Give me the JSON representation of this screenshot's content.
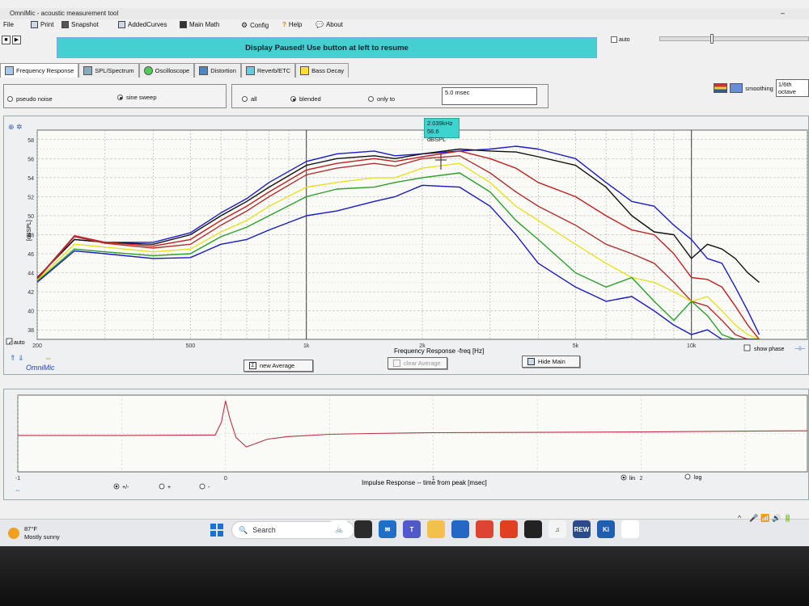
{
  "window": {
    "title": "OmniMic - acoustic measurement tool",
    "minimize": "–"
  },
  "menu": [
    {
      "label": "File",
      "icon": "none"
    },
    {
      "label": "Print",
      "icon": "printer-icon"
    },
    {
      "label": "Snapshot",
      "icon": "camera-icon"
    },
    {
      "label": "AddedCurves",
      "icon": "curves-icon"
    },
    {
      "label": "Main Math",
      "icon": "calculator-icon"
    },
    {
      "label": "Config",
      "icon": "gear-icon"
    },
    {
      "label": "Help",
      "icon": "question-icon"
    },
    {
      "label": "About",
      "icon": "bubble-icon"
    }
  ],
  "banner": {
    "text": "Display Paused! Use button at left to resume",
    "color": "#45cfd0"
  },
  "top_auto": {
    "label": "auto"
  },
  "tabs": [
    {
      "label": "Frequency Response",
      "icon": "freq-response-icon"
    },
    {
      "label": "SPL/Spectrum",
      "icon": "spectrum-icon"
    },
    {
      "label": "Oscilloscope",
      "icon": "oscilloscope-icon"
    },
    {
      "label": "Distortion",
      "icon": "distortion-icon"
    },
    {
      "label": "Reverb/ETC",
      "icon": "reverb-icon"
    },
    {
      "label": "Bass Decay",
      "icon": "bass-decay-icon"
    }
  ],
  "signal_options": {
    "pseudo_noise": "pseudo noise",
    "sine_sweep": "sine sweep",
    "selected": "sine sweep"
  },
  "gate_options": {
    "all": "all",
    "blended": "blended",
    "only_to": "only to",
    "selected": "blended",
    "gate_time": "5.0 msec"
  },
  "smoothing": {
    "label": "smoothing",
    "value": "1/6th octave"
  },
  "cursor_readout": {
    "freq": "2.039kHz",
    "level": "56.6 dBSPL"
  },
  "freq_graph": {
    "y_axis_label": "[dBSPL]",
    "y_ticks": [
      "58",
      "56",
      "54",
      "52",
      "50",
      "48",
      "46",
      "44",
      "42",
      "40",
      "38"
    ],
    "x_ticks": [
      "200",
      "500",
      "1k",
      "2k",
      "5k",
      "10k"
    ],
    "x_label": "Frequency Response -freq [Hz]",
    "auto_label": "auto",
    "brand": "OmniMic",
    "show_phase": "show phase"
  },
  "buttons": {
    "new_average": "new Average",
    "clear_average": "clear Average",
    "hide_main": "Hide Main"
  },
  "chart_data": [
    {
      "type": "line",
      "title": "",
      "xlabel": "Frequency Response -freq [Hz]",
      "ylabel": "[dBSPL]",
      "x_scale": "log",
      "xlim": [
        200,
        20000
      ],
      "ylim": [
        37,
        59
      ],
      "grid": true,
      "x": [
        200,
        250,
        300,
        400,
        500,
        600,
        700,
        800,
        1000,
        1200,
        1500,
        1700,
        2000,
        2500,
        3000,
        3500,
        4000,
        5000,
        6000,
        7000,
        8000,
        9000,
        10000,
        11000,
        12000,
        13000,
        14000,
        15000
      ],
      "series": [
        {
          "color": "#1a1ad0",
          "values": [
            43.5,
            47.5,
            47.2,
            47.2,
            48.2,
            50.3,
            51.8,
            53.5,
            55.7,
            56.5,
            56.8,
            56.3,
            56.5,
            56.8,
            57.0,
            57.3,
            57.0,
            56.0,
            53.5,
            51.5,
            51.0,
            49.0,
            47.5,
            45.5,
            45.0,
            42.5,
            40.0,
            37.5
          ]
        },
        {
          "color": "#111111",
          "values": [
            43.5,
            47.5,
            47.2,
            47.0,
            48.0,
            50.0,
            51.5,
            53.0,
            55.3,
            56.0,
            56.3,
            56.0,
            56.5,
            57.0,
            56.8,
            56.7,
            56.2,
            55.3,
            53.0,
            50.0,
            48.3,
            48.0,
            45.5,
            47.0,
            46.5,
            45.5,
            44.0,
            43.0
          ]
        },
        {
          "color": "#c41e1e",
          "values": [
            43.4,
            47.9,
            47.2,
            46.8,
            47.5,
            49.5,
            51.0,
            52.5,
            54.8,
            55.5,
            56.0,
            55.7,
            56.2,
            56.8,
            56.0,
            55.0,
            53.5,
            52.0,
            50.0,
            48.5,
            48.0,
            46.0,
            43.5,
            43.3,
            42.5,
            40.5,
            38.5,
            37.0
          ]
        },
        {
          "color": "#b23030",
          "values": [
            43.3,
            47.8,
            47.1,
            46.6,
            47.0,
            49.0,
            50.5,
            52.0,
            54.3,
            55.0,
            55.5,
            55.2,
            56.0,
            56.3,
            54.5,
            52.5,
            51.0,
            49.0,
            47.0,
            46.0,
            45.0,
            43.0,
            41.0,
            40.5,
            39.0,
            37.5,
            37.0,
            37.0
          ]
        },
        {
          "color": "#e8e020",
          "values": [
            43.2,
            47.0,
            46.7,
            46.2,
            46.5,
            48.3,
            49.5,
            51.0,
            53.0,
            53.5,
            54.0,
            54.0,
            55.0,
            55.5,
            53.5,
            51.0,
            49.5,
            47.0,
            45.0,
            43.5,
            43.0,
            42.0,
            41.0,
            41.5,
            40.0,
            38.5,
            37.5,
            37.0
          ]
        },
        {
          "color": "#2aa02a",
          "values": [
            43.1,
            46.5,
            46.2,
            45.8,
            46.0,
            47.8,
            48.8,
            50.0,
            52.0,
            52.8,
            53.0,
            53.5,
            54.0,
            54.5,
            52.5,
            49.5,
            47.5,
            44.0,
            42.5,
            43.5,
            41.0,
            39.0,
            41.0,
            39.5,
            37.5,
            37.0,
            37.0,
            37.0
          ]
        },
        {
          "color": "#1818c8",
          "values": [
            43.0,
            46.3,
            46.0,
            45.5,
            45.6,
            47.0,
            47.5,
            48.5,
            50.0,
            50.5,
            51.5,
            52.0,
            53.2,
            53.0,
            51.0,
            48.0,
            45.0,
            42.5,
            41.0,
            41.5,
            40.0,
            38.5,
            37.5,
            38.0,
            37.0,
            37.0,
            37.0,
            37.0
          ]
        }
      ]
    },
    {
      "type": "line",
      "title": "",
      "xlabel": "Impulse Response -- time from peak [msec]",
      "ylabel": "",
      "x_ticks": [
        "-1",
        "0",
        "1",
        "2"
      ],
      "xlim": [
        -1,
        2.8
      ],
      "ylim": [
        -1,
        1
      ],
      "grid": true,
      "series": [
        {
          "color": "#c03040",
          "x": [
            -1,
            -0.5,
            -0.05,
            -0.02,
            0,
            0.02,
            0.05,
            0.1,
            0.15,
            0.2,
            0.3,
            0.4,
            0.5,
            0.7,
            1.0,
            1.5,
            2.0,
            2.5,
            2.8
          ],
          "values": [
            -0.05,
            -0.05,
            -0.04,
            0.3,
            0.85,
            0.4,
            -0.1,
            -0.35,
            -0.25,
            -0.15,
            -0.08,
            -0.05,
            -0.02,
            0.0,
            0.02,
            0.03,
            0.04,
            0.06,
            0.07
          ]
        }
      ]
    }
  ],
  "impulse": {
    "x_label": "Impulse Response  -- time from peak [msec]",
    "x_ticks": [
      "-1",
      "0",
      "1",
      "2"
    ],
    "options": {
      "plus_minus": "+/-",
      "plus": "+",
      "minus": "-",
      "selected": "+/-"
    },
    "scale": {
      "lin": "lin",
      "log": "log",
      "selected": "lin"
    }
  },
  "taskbar": {
    "weather_temp": "87°F",
    "weather_desc": "Mostly sunny",
    "search_placeholder": "Search",
    "apps": [
      {
        "name": "bicycle-icon",
        "label": "🚲",
        "color": "#ffffff"
      },
      {
        "name": "taskview-icon",
        "label": "",
        "color": "#2b2b2b"
      },
      {
        "name": "mail-icon",
        "label": "✉",
        "color": "#1f6fc8"
      },
      {
        "name": "teams-icon",
        "label": "T",
        "color": "#5059c9"
      },
      {
        "name": "folder-icon",
        "label": "",
        "color": "#f2c14b"
      },
      {
        "name": "store-icon",
        "label": "",
        "color": "#2467c5"
      },
      {
        "name": "chrome-icon",
        "label": "",
        "color": "#dd4433"
      },
      {
        "name": "office-icon",
        "label": "",
        "color": "#e04020"
      },
      {
        "name": "phone-icon",
        "label": "",
        "color": "#222222"
      },
      {
        "name": "itunes-icon",
        "label": "♫",
        "color": "#f4f4f4"
      },
      {
        "name": "rew-icon",
        "label": "REW",
        "color": "#2a4a8a"
      },
      {
        "name": "ki-icon",
        "label": "Ki",
        "color": "#1f5fb0"
      },
      {
        "name": "omnimic-icon",
        "label": "",
        "color": "#ffffff"
      }
    ],
    "tray": [
      "^",
      "🎤",
      "📶",
      "🔊",
      "🔋"
    ]
  }
}
